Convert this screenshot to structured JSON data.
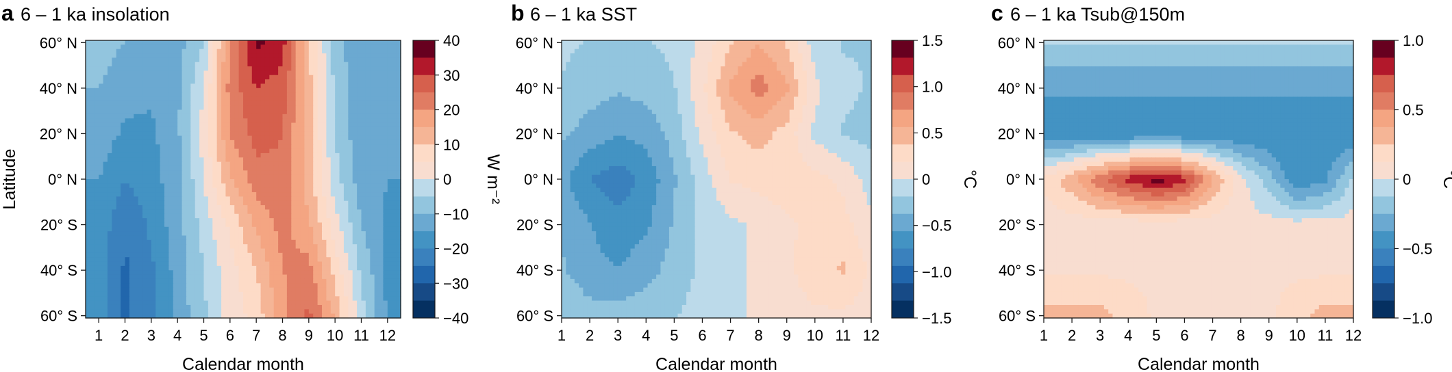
{
  "chart_data": [
    {
      "type": "heatmap",
      "panel": "a",
      "title": "6 – 1 ka insolation",
      "xlabel": "Calendar month",
      "ylabel": "Latitude",
      "x": [
        1,
        2,
        3,
        4,
        5,
        6,
        7,
        8,
        9,
        10,
        11,
        12
      ],
      "x_tick_labels": [
        "1",
        "2",
        "3",
        "4",
        "5",
        "6",
        "7",
        "8",
        "9",
        "10",
        "11",
        "12"
      ],
      "y_tick_labels": [
        "60° N",
        "40° N",
        "20° N",
        "0° N",
        "20° S",
        "40° S",
        "60° S"
      ],
      "y": [
        60,
        40,
        20,
        0,
        -20,
        -40,
        -60
      ],
      "xlim": [
        0.5,
        12.5
      ],
      "ylim": [
        -61,
        61
      ],
      "colorbar": {
        "label": "W m⁻²",
        "min": -40,
        "max": 40,
        "levels": 16,
        "ticks": [
          40,
          30,
          20,
          10,
          0,
          -10,
          -20,
          -30,
          -40
        ],
        "tick_labels": [
          "40",
          "30",
          "20",
          "10",
          "0",
          "−10",
          "−20",
          "−30",
          "−40"
        ]
      },
      "values": [
        [
          -8,
          -10,
          -12,
          -12,
          -5,
          20,
          36,
          32,
          10,
          -8,
          -14,
          -12
        ],
        [
          -10,
          -13,
          -14,
          -11,
          0,
          22,
          30,
          28,
          12,
          -6,
          -14,
          -13
        ],
        [
          -12,
          -16,
          -16,
          -11,
          2,
          20,
          27,
          25,
          12,
          -5,
          -14,
          -14
        ],
        [
          -15,
          -20,
          -17,
          -12,
          0,
          14,
          23,
          24,
          12,
          -3,
          -13,
          -15
        ],
        [
          -17,
          -24,
          -19,
          -12,
          -3,
          6,
          16,
          22,
          16,
          2,
          -10,
          -16
        ],
        [
          -17,
          -26,
          -21,
          -13,
          -5,
          3,
          10,
          20,
          22,
          8,
          -6,
          -16
        ],
        [
          -17,
          -26,
          -22,
          -13,
          -6,
          2,
          7,
          18,
          26,
          14,
          -3,
          -16
        ]
      ]
    },
    {
      "type": "heatmap",
      "panel": "b",
      "title": "6 – 1 ka SST",
      "xlabel": "Calendar month",
      "ylabel": "",
      "x": [
        1,
        2,
        3,
        4,
        5,
        6,
        7,
        8,
        9,
        10,
        11,
        12
      ],
      "x_tick_labels": [
        "1",
        "2",
        "3",
        "4",
        "5",
        "6",
        "7",
        "8",
        "9",
        "10",
        "11",
        "12"
      ],
      "y_tick_labels": [
        "60° N",
        "40° N",
        "20° N",
        "0° N",
        "20° S",
        "40° S",
        "60° S"
      ],
      "y": [
        60,
        40,
        20,
        0,
        -20,
        -40,
        -60
      ],
      "xlim": [
        1,
        12
      ],
      "ylim": [
        -61,
        61
      ],
      "colorbar": {
        "label": "°C",
        "min": -1.5,
        "max": 1.5,
        "levels": 16,
        "ticks": [
          1.5,
          1.0,
          0.5,
          0,
          -0.5,
          -1.0,
          -1.5
        ],
        "tick_labels": [
          "1.5",
          "1.0",
          "0.5",
          "0",
          "−0.5",
          "−1.0",
          "−1.5"
        ]
      },
      "values": [
        [
          -0.15,
          -0.2,
          -0.2,
          -0.2,
          -0.15,
          0.05,
          0.35,
          0.55,
          0.35,
          -0.1,
          -0.2,
          -0.2
        ],
        [
          -0.2,
          -0.3,
          -0.35,
          -0.3,
          -0.2,
          0.15,
          0.6,
          0.85,
          0.6,
          0.05,
          -0.15,
          -0.2
        ],
        [
          -0.35,
          -0.45,
          -0.55,
          -0.5,
          -0.3,
          0.05,
          0.35,
          0.45,
          0.3,
          -0.05,
          -0.2,
          -0.25
        ],
        [
          -0.5,
          -0.75,
          -0.85,
          -0.7,
          -0.4,
          -0.1,
          0.2,
          0.25,
          0.3,
          0.25,
          0.15,
          -0.1
        ],
        [
          -0.4,
          -0.55,
          -0.7,
          -0.6,
          -0.35,
          -0.15,
          -0.05,
          0.05,
          0.15,
          0.25,
          0.25,
          0.05
        ],
        [
          -0.35,
          -0.5,
          -0.55,
          -0.45,
          -0.3,
          -0.15,
          -0.05,
          0.05,
          0.15,
          0.3,
          0.4,
          0.15
        ],
        [
          -0.2,
          -0.3,
          -0.3,
          -0.25,
          -0.2,
          -0.1,
          -0.05,
          0.05,
          0.1,
          0.15,
          0.15,
          0.1
        ]
      ]
    },
    {
      "type": "heatmap",
      "panel": "c",
      "title": "6 – 1 ka Tsub@150m",
      "xlabel": "Calendar month",
      "ylabel": "",
      "x": [
        1,
        2,
        3,
        4,
        5,
        6,
        7,
        8,
        9,
        10,
        11,
        12
      ],
      "x_tick_labels": [
        "1",
        "2",
        "3",
        "4",
        "5",
        "6",
        "7",
        "8",
        "9",
        "10",
        "11",
        "12"
      ],
      "y_tick_labels": [
        "60° N",
        "40° N",
        "20° N",
        "0° N",
        "20° S",
        "40° S",
        "60° S"
      ],
      "y": [
        60,
        40,
        20,
        0,
        -20,
        -40,
        -60
      ],
      "xlim": [
        1,
        12
      ],
      "ylim": [
        -61,
        61
      ],
      "colorbar": {
        "label": "°C",
        "min": -1.0,
        "max": 1.0,
        "levels": 16,
        "ticks": [
          1.0,
          0.5,
          0,
          -0.5,
          -1.0
        ],
        "tick_labels": [
          "1.0",
          "0.5",
          "0",
          "−0.5",
          "−1.0"
        ]
      },
      "values": [
        [
          -0.12,
          -0.12,
          -0.12,
          -0.12,
          -0.12,
          -0.12,
          -0.12,
          -0.12,
          -0.12,
          -0.12,
          -0.12,
          -0.12
        ],
        [
          -0.35,
          -0.35,
          -0.35,
          -0.35,
          -0.35,
          -0.35,
          -0.35,
          -0.35,
          -0.35,
          -0.35,
          -0.35,
          -0.35
        ],
        [
          -0.5,
          -0.5,
          -0.5,
          -0.5,
          -0.5,
          -0.5,
          -0.5,
          -0.5,
          -0.5,
          -0.5,
          -0.5,
          -0.5
        ],
        [
          0.15,
          0.35,
          0.6,
          0.8,
          0.95,
          0.8,
          0.4,
          0.05,
          -0.2,
          -0.5,
          -0.4,
          -0.1
        ],
        [
          0.05,
          0.05,
          0.05,
          0.05,
          0.05,
          0.05,
          0.05,
          0.05,
          0.05,
          0.05,
          0.05,
          0.05
        ],
        [
          0.1,
          0.1,
          0.1,
          0.1,
          0.1,
          0.1,
          0.1,
          0.1,
          0.1,
          0.1,
          0.1,
          0.1
        ],
        [
          0.3,
          0.3,
          0.3,
          0.2,
          0.1,
          0.1,
          0.1,
          0.1,
          0.1,
          0.2,
          0.3,
          0.3
        ]
      ]
    }
  ]
}
